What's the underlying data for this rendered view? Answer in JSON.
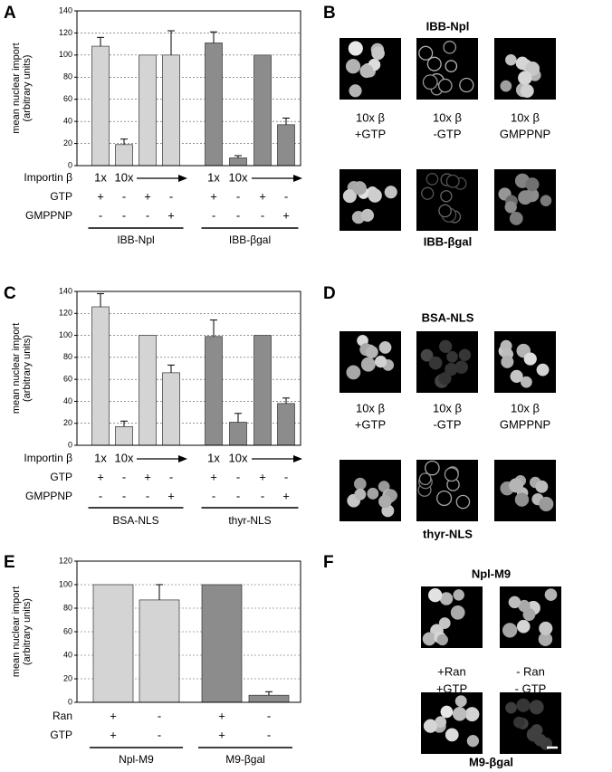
{
  "chart_data": [
    {
      "type": "bar",
      "panel": "A",
      "ylabel": [
        "mean nuclear import",
        "(arbitrary units)"
      ],
      "ylim": [
        0,
        140
      ],
      "yticks": [
        0,
        20,
        40,
        60,
        80,
        100,
        120,
        140
      ],
      "grid": true,
      "values": [
        108,
        19,
        100,
        100,
        111,
        7,
        100,
        37
      ],
      "errors": [
        8,
        5,
        null,
        22,
        10,
        2,
        null,
        6
      ],
      "colors": [
        "#d4d4d4",
        "#d4d4d4",
        "#d4d4d4",
        "#d4d4d4",
        "#8c8c8c",
        "#8c8c8c",
        "#8c8c8c",
        "#8c8c8c"
      ],
      "conditions": [
        {
          "name": "Importin β",
          "values": [
            "1x",
            "10x",
            null,
            null,
            "1x",
            "10x",
            null,
            null
          ]
        },
        {
          "name": "GTP",
          "values": [
            "+",
            "-",
            "+",
            "-",
            "+",
            "-",
            "+",
            "-"
          ]
        },
        {
          "name": "GMPPNP",
          "values": [
            "-",
            "-",
            "-",
            "+",
            "-",
            "-",
            "-",
            "+"
          ]
        }
      ],
      "groups": [
        "IBB-Npl",
        "IBB-βgal"
      ]
    },
    {
      "type": "bar",
      "panel": "C",
      "ylabel": [
        "mean nuclear import",
        "(arbitrary units)"
      ],
      "ylim": [
        0,
        140
      ],
      "yticks": [
        0,
        20,
        40,
        60,
        80,
        100,
        120,
        140
      ],
      "grid": true,
      "values": [
        126,
        17,
        100,
        66,
        99,
        21,
        100,
        38
      ],
      "errors": [
        12,
        5,
        null,
        7,
        15,
        8,
        null,
        5
      ],
      "colors": [
        "#d4d4d4",
        "#d4d4d4",
        "#d4d4d4",
        "#d4d4d4",
        "#8c8c8c",
        "#8c8c8c",
        "#8c8c8c",
        "#8c8c8c"
      ],
      "conditions": [
        {
          "name": "Importin β",
          "values": [
            "1x",
            "10x",
            null,
            null,
            "1x",
            "10x",
            null,
            null
          ]
        },
        {
          "name": "GTP",
          "values": [
            "+",
            "-",
            "+",
            "-",
            "+",
            "-",
            "+",
            "-"
          ]
        },
        {
          "name": "GMPPNP",
          "values": [
            "-",
            "-",
            "-",
            "+",
            "-",
            "-",
            "-",
            "+"
          ]
        }
      ],
      "groups": [
        "BSA-NLS",
        "thyr-NLS"
      ]
    },
    {
      "type": "bar",
      "panel": "E",
      "ylabel": [
        "mean nuclear import",
        "(arbitrary units)"
      ],
      "ylim": [
        0,
        120
      ],
      "yticks": [
        0,
        20,
        40,
        60,
        80,
        100,
        120
      ],
      "grid": true,
      "values": [
        100,
        87,
        100,
        6
      ],
      "errors": [
        null,
        13,
        null,
        3
      ],
      "colors": [
        "#d4d4d4",
        "#d4d4d4",
        "#8c8c8c",
        "#8c8c8c"
      ],
      "conditions": [
        {
          "name": "Ran",
          "values": [
            "+",
            "-",
            "+",
            "-"
          ]
        },
        {
          "name": "GTP",
          "values": [
            "+",
            "-",
            "+",
            "-"
          ]
        }
      ],
      "groups": [
        "Npl-M9",
        "M9-βgal"
      ]
    }
  ],
  "image_panels": [
    {
      "panel": "B",
      "top_title": "IBB-Npl",
      "bottom_title": "IBB-βgal",
      "labels": [
        [
          "10x β",
          "+GTP"
        ],
        [
          "10x β",
          "-GTP"
        ],
        [
          "10x β",
          "GMPPNP"
        ]
      ]
    },
    {
      "panel": "D",
      "top_title": "BSA-NLS",
      "bottom_title": "thyr-NLS",
      "labels": [
        [
          "10x β",
          "+GTP"
        ],
        [
          "10x β",
          "-GTP"
        ],
        [
          "10x β",
          "GMPPNP"
        ]
      ]
    },
    {
      "panel": "F",
      "top_title": "Npl-M9",
      "bottom_title": "M9-βgal",
      "labels": [
        [
          "+Ran",
          "+GTP"
        ],
        [
          "- Ran",
          "- GTP"
        ]
      ]
    }
  ]
}
